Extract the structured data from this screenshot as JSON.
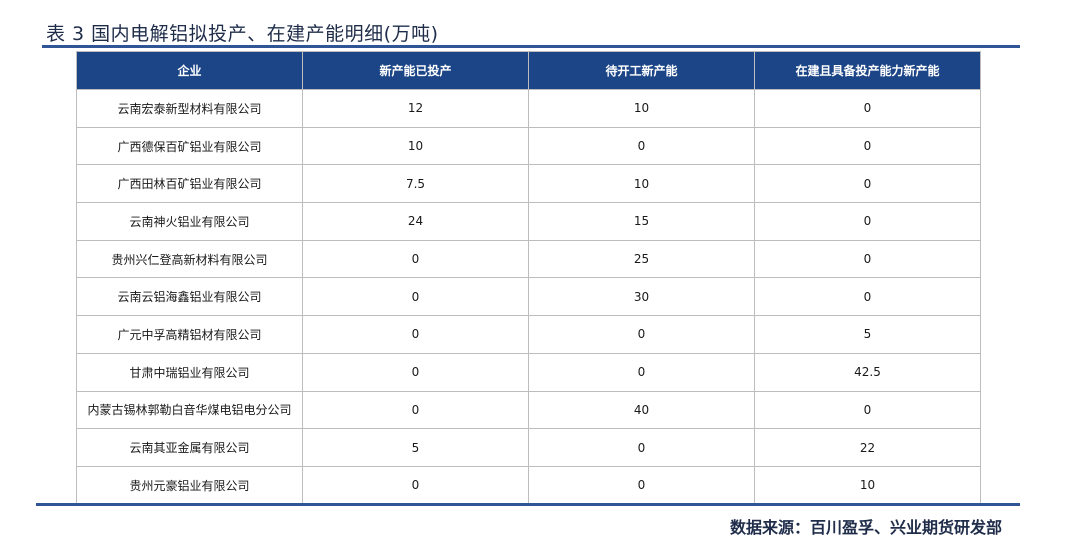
{
  "title": "表 3 国内电解铝拟投产、在建产能明细(万吨)",
  "table": {
    "headers": [
      "企业",
      "新产能已投产",
      "待开工新产能",
      "在建且具备投产能力新产能"
    ],
    "rows": [
      [
        "云南宏泰新型材料有限公司",
        "12",
        "10",
        "0"
      ],
      [
        "广西德保百矿铝业有限公司",
        "10",
        "0",
        "0"
      ],
      [
        "广西田林百矿铝业有限公司",
        "7.5",
        "10",
        "0"
      ],
      [
        "云南神火铝业有限公司",
        "24",
        "15",
        "0"
      ],
      [
        "贵州兴仁登高新材料有限公司",
        "0",
        "25",
        "0"
      ],
      [
        "云南云铝海鑫铝业有限公司",
        "0",
        "30",
        "0"
      ],
      [
        "广元中孚高精铝材有限公司",
        "0",
        "0",
        "5"
      ],
      [
        "甘肃中瑞铝业有限公司",
        "0",
        "0",
        "42.5"
      ],
      [
        "内蒙古锡林郭勒白音华煤电铝电分公司",
        "0",
        "40",
        "0"
      ],
      [
        "云南其亚金属有限公司",
        "5",
        "0",
        "22"
      ],
      [
        "贵州元豪铝业有限公司",
        "0",
        "0",
        "10"
      ]
    ]
  },
  "source": "数据来源：百川盈孚、兴业期货研发部"
}
